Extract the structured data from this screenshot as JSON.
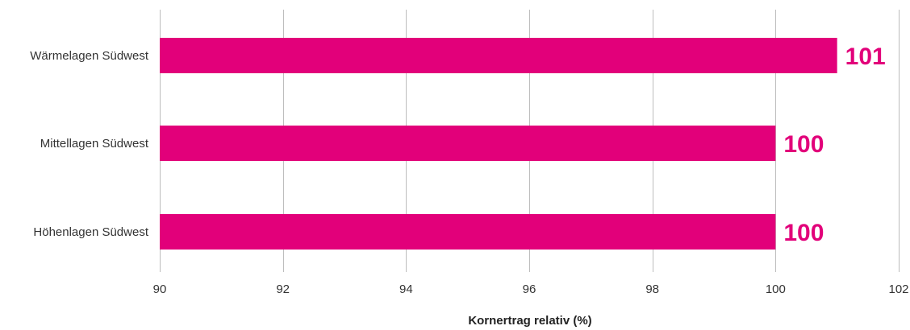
{
  "chart_data": {
    "type": "bar",
    "orientation": "horizontal",
    "categories": [
      "Wärmelagen Südwest",
      "Mittellagen Südwest",
      "Höhenlagen Südwest"
    ],
    "values": [
      101,
      100,
      100
    ],
    "data_labels": [
      "101",
      "100",
      "100"
    ],
    "xlabel": "Kornertrag relativ (%)",
    "ylabel": "",
    "xlim": [
      90,
      102
    ],
    "ticks": [
      90,
      92,
      94,
      96,
      98,
      100,
      102
    ],
    "tick_labels": [
      "90",
      "92",
      "94",
      "96",
      "98",
      "100",
      "102"
    ],
    "grid": true,
    "legend": "none",
    "colors": {
      "bar": "#e2007a",
      "label": "#e2007a"
    }
  }
}
